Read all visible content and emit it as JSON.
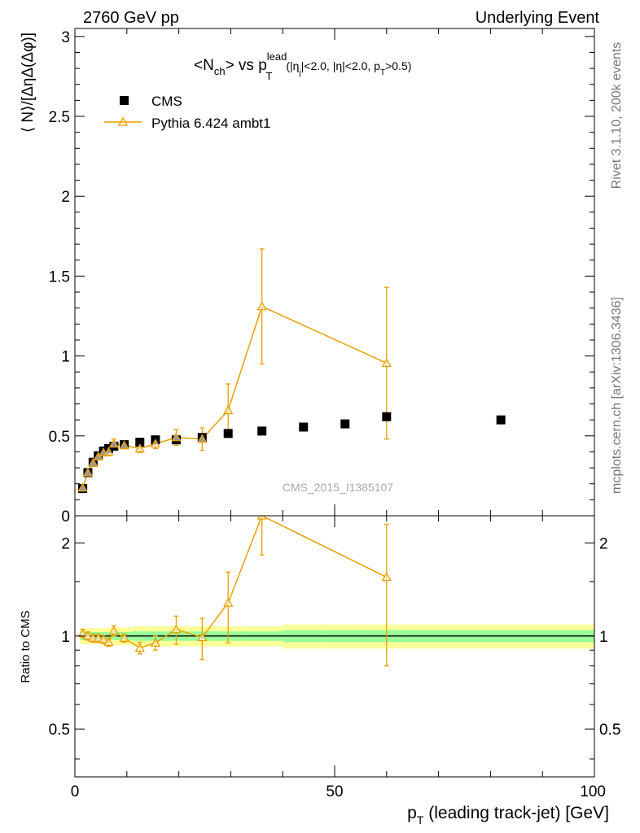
{
  "header": {
    "left": "2760 GeV pp",
    "right": "Underlying Event"
  },
  "side_labels": {
    "top": "Rivet 3.1.10,  200k events",
    "bottom": "mcplots.cern.ch [arXiv:1306.3436]"
  },
  "watermark": "CMS_2015_I1385107",
  "colors": {
    "data": "#000000",
    "mc": "#e8a000",
    "band_inner": "#99ff99",
    "band_outer": "#ffff99"
  },
  "chart_data": [
    {
      "type": "scatter",
      "panel": "main",
      "title": {
        "main": "<N",
        "sub1": "ch",
        "mid": "> vs p",
        "sup": "lead",
        "sub2": "T",
        "cut_a": "(|η",
        "cut_a_sub": "j",
        "cut_b": "|<2.0, |η|<2.0, p",
        "cut_b_sub": "T",
        "cut_c": ">0.5)"
      },
      "ylabel": "⟨ N⟩/[ΔηΔ(Δφ)]",
      "xlim": [
        0,
        100
      ],
      "ylim": [
        0,
        3.05
      ],
      "yticks": [
        {
          "v": 0,
          "label": "0"
        },
        {
          "v": 0.5,
          "label": "0.5"
        },
        {
          "v": 1,
          "label": "1"
        },
        {
          "v": 1.5,
          "label": "1.5"
        },
        {
          "v": 2,
          "label": "2"
        },
        {
          "v": 2.5,
          "label": "2.5"
        },
        {
          "v": 3,
          "label": "3"
        }
      ],
      "legend_position": "top-left",
      "series": [
        {
          "name": "CMS",
          "style": "square",
          "points": [
            {
              "x": 1.5,
              "y": 0.17
            },
            {
              "x": 2.5,
              "y": 0.27
            },
            {
              "x": 3.5,
              "y": 0.335
            },
            {
              "x": 4.5,
              "y": 0.375
            },
            {
              "x": 5.5,
              "y": 0.405
            },
            {
              "x": 6.5,
              "y": 0.42
            },
            {
              "x": 7.5,
              "y": 0.435
            },
            {
              "x": 9.5,
              "y": 0.445
            },
            {
              "x": 12.5,
              "y": 0.46
            },
            {
              "x": 15.5,
              "y": 0.475
            },
            {
              "x": 19.5,
              "y": 0.475
            },
            {
              "x": 24.5,
              "y": 0.49
            },
            {
              "x": 29.5,
              "y": 0.515
            },
            {
              "x": 36,
              "y": 0.53
            },
            {
              "x": 44,
              "y": 0.555
            },
            {
              "x": 52,
              "y": 0.575
            },
            {
              "x": 60,
              "y": 0.62
            },
            {
              "x": 82,
              "y": 0.6
            }
          ]
        },
        {
          "name": "Pythia 6.424 ambt1",
          "style": "triangle-line",
          "points": [
            {
              "x": 1.5,
              "y": 0.175,
              "err": 0.02
            },
            {
              "x": 2.5,
              "y": 0.27,
              "err": 0.02
            },
            {
              "x": 3.5,
              "y": 0.33,
              "err": 0.02
            },
            {
              "x": 4.5,
              "y": 0.37,
              "err": 0.02
            },
            {
              "x": 5.5,
              "y": 0.395,
              "err": 0.02
            },
            {
              "x": 6.5,
              "y": 0.4,
              "err": 0.025
            },
            {
              "x": 7.5,
              "y": 0.45,
              "err": 0.03
            },
            {
              "x": 9.5,
              "y": 0.44,
              "err": 0.02
            },
            {
              "x": 12.5,
              "y": 0.42,
              "err": 0.025
            },
            {
              "x": 15.5,
              "y": 0.45,
              "err": 0.03
            },
            {
              "x": 19.5,
              "y": 0.49,
              "err": 0.05
            },
            {
              "x": 24.5,
              "y": 0.48,
              "err": 0.07
            },
            {
              "x": 29.5,
              "y": 0.66,
              "err": 0.165
            },
            {
              "x": 36,
              "y": 1.31,
              "err": 0.36
            },
            {
              "x": 60,
              "y": 0.955,
              "err": 0.475
            }
          ]
        }
      ]
    },
    {
      "type": "scatter",
      "panel": "ratio",
      "ylabel": "Ratio to CMS",
      "xlabel_main": "p",
      "xlabel_sub": "T",
      "xlabel_rest": " (leading track-jet) [GeV]",
      "xlim": [
        0,
        100
      ],
      "ylim": [
        0.35,
        2.45
      ],
      "log_y": true,
      "xticks": [
        {
          "v": 0,
          "label": "0"
        },
        {
          "v": 50,
          "label": "50"
        },
        {
          "v": 100,
          "label": "100"
        }
      ],
      "yticks": [
        {
          "v": 0.5,
          "label": "0.5"
        },
        {
          "v": 1,
          "label": "1"
        },
        {
          "v": 2,
          "label": "2"
        }
      ],
      "band_edges": [
        1,
        2,
        3,
        4,
        5,
        6,
        7,
        8,
        11,
        14,
        17,
        22,
        27,
        32,
        40,
        48,
        56,
        64,
        100
      ],
      "band_inner_halfwidth": [
        0.03,
        0.03,
        0.03,
        0.03,
        0.03,
        0.03,
        0.03,
        0.03,
        0.035,
        0.035,
        0.035,
        0.035,
        0.035,
        0.035,
        0.045,
        0.045,
        0.045,
        0.045
      ],
      "band_outer_halfwidth": [
        0.06,
        0.06,
        0.06,
        0.06,
        0.06,
        0.065,
        0.065,
        0.065,
        0.075,
        0.075,
        0.075,
        0.075,
        0.075,
        0.075,
        0.09,
        0.09,
        0.09,
        0.09
      ],
      "series": [
        {
          "name": "Pythia 6.424 ambt1",
          "points": [
            {
              "x": 1.5,
              "y": 1.02,
              "err": 0.03
            },
            {
              "x": 2.5,
              "y": 1.0,
              "err": 0.03
            },
            {
              "x": 3.5,
              "y": 0.985,
              "err": 0.03
            },
            {
              "x": 4.5,
              "y": 0.985,
              "err": 0.03
            },
            {
              "x": 5.5,
              "y": 0.975,
              "err": 0.03
            },
            {
              "x": 6.5,
              "y": 0.955,
              "err": 0.03
            },
            {
              "x": 7.5,
              "y": 1.04,
              "err": 0.04
            },
            {
              "x": 9.5,
              "y": 0.985,
              "err": 0.03
            },
            {
              "x": 12.5,
              "y": 0.915,
              "err": 0.04
            },
            {
              "x": 15.5,
              "y": 0.95,
              "err": 0.05
            },
            {
              "x": 19.5,
              "y": 1.05,
              "err": 0.11
            },
            {
              "x": 24.5,
              "y": 0.99,
              "err": 0.15
            },
            {
              "x": 29.5,
              "y": 1.28,
              "err": 0.33
            },
            {
              "x": 36,
              "y": 2.45,
              "err": 0.62
            },
            {
              "x": 60,
              "y": 1.55,
              "err": 0.75
            }
          ]
        }
      ]
    }
  ]
}
